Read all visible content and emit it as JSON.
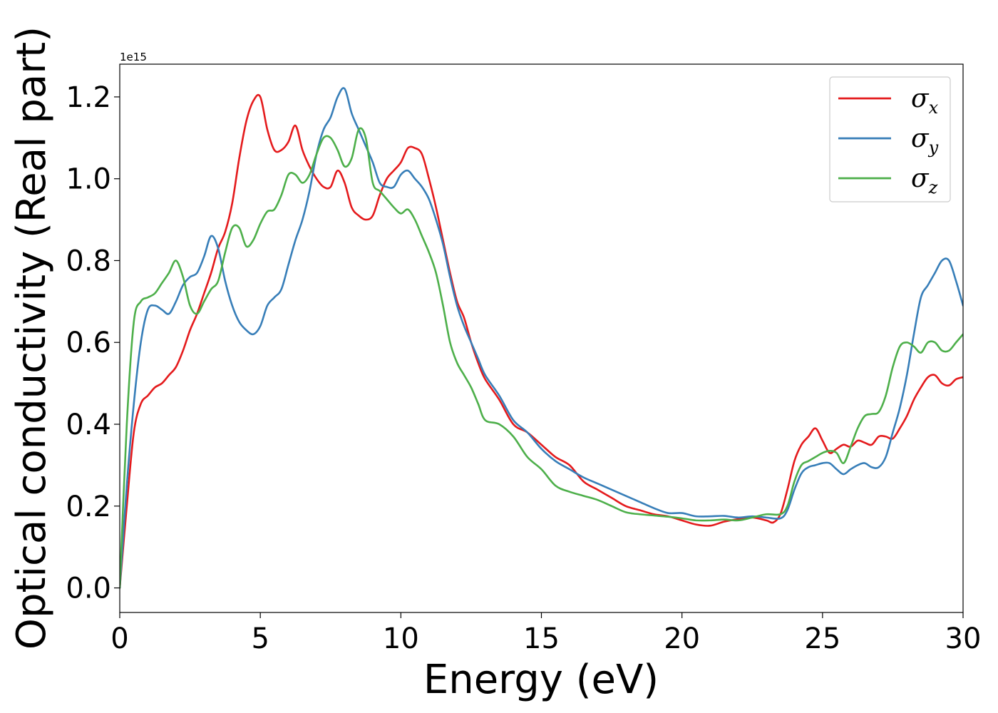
{
  "chart_data": {
    "type": "line",
    "xlabel": "Energy (eV)",
    "ylabel": "Optical conductivity (Real part)",
    "y_offset_label": "1e15",
    "xlim": [
      0,
      30
    ],
    "ylim": [
      -0.06,
      1.28
    ],
    "xticks": [
      0,
      5,
      10,
      15,
      20,
      25,
      30
    ],
    "xtick_labels": [
      "0",
      "5",
      "10",
      "15",
      "20",
      "25",
      "30"
    ],
    "yticks": [
      0.0,
      0.2,
      0.4,
      0.6,
      0.8,
      1.0,
      1.2
    ],
    "ytick_labels": [
      "0.0",
      "0.2",
      "0.4",
      "0.6",
      "0.8",
      "1.0",
      "1.2"
    ],
    "grid": false,
    "legend_position": "top-right",
    "series": [
      {
        "name": "σx",
        "legend_symbol": "σ",
        "legend_sub": "x",
        "color": "#e41a1c",
        "points": [
          [
            0,
            0.0
          ],
          [
            0.25,
            0.2
          ],
          [
            0.5,
            0.38
          ],
          [
            0.75,
            0.45
          ],
          [
            1.0,
            0.47
          ],
          [
            1.25,
            0.49
          ],
          [
            1.5,
            0.5
          ],
          [
            1.75,
            0.52
          ],
          [
            2.0,
            0.54
          ],
          [
            2.25,
            0.58
          ],
          [
            2.5,
            0.63
          ],
          [
            2.75,
            0.67
          ],
          [
            3.0,
            0.72
          ],
          [
            3.25,
            0.77
          ],
          [
            3.5,
            0.83
          ],
          [
            3.75,
            0.87
          ],
          [
            4.0,
            0.94
          ],
          [
            4.25,
            1.05
          ],
          [
            4.5,
            1.14
          ],
          [
            4.75,
            1.19
          ],
          [
            5.0,
            1.2
          ],
          [
            5.25,
            1.12
          ],
          [
            5.5,
            1.07
          ],
          [
            5.75,
            1.07
          ],
          [
            6.0,
            1.09
          ],
          [
            6.25,
            1.13
          ],
          [
            6.5,
            1.07
          ],
          [
            6.75,
            1.03
          ],
          [
            7.0,
            1.0
          ],
          [
            7.25,
            0.98
          ],
          [
            7.5,
            0.98
          ],
          [
            7.75,
            1.02
          ],
          [
            8.0,
            0.99
          ],
          [
            8.25,
            0.93
          ],
          [
            8.5,
            0.91
          ],
          [
            8.75,
            0.9
          ],
          [
            9.0,
            0.91
          ],
          [
            9.25,
            0.96
          ],
          [
            9.5,
            1.0
          ],
          [
            9.75,
            1.02
          ],
          [
            10.0,
            1.04
          ],
          [
            10.25,
            1.075
          ],
          [
            10.5,
            1.075
          ],
          [
            10.75,
            1.06
          ],
          [
            11.0,
            1.0
          ],
          [
            11.25,
            0.93
          ],
          [
            11.5,
            0.85
          ],
          [
            11.75,
            0.77
          ],
          [
            12.0,
            0.7
          ],
          [
            12.25,
            0.66
          ],
          [
            12.5,
            0.6
          ],
          [
            12.75,
            0.55
          ],
          [
            13.0,
            0.51
          ],
          [
            13.5,
            0.46
          ],
          [
            14.0,
            0.4
          ],
          [
            14.5,
            0.38
          ],
          [
            15.0,
            0.35
          ],
          [
            15.5,
            0.32
          ],
          [
            16.0,
            0.3
          ],
          [
            16.5,
            0.26
          ],
          [
            17.0,
            0.24
          ],
          [
            17.5,
            0.22
          ],
          [
            18.0,
            0.2
          ],
          [
            18.5,
            0.19
          ],
          [
            19.0,
            0.18
          ],
          [
            19.5,
            0.175
          ],
          [
            20.0,
            0.165
          ],
          [
            20.5,
            0.155
          ],
          [
            21.0,
            0.152
          ],
          [
            21.5,
            0.162
          ],
          [
            22.0,
            0.168
          ],
          [
            22.5,
            0.172
          ],
          [
            23.0,
            0.165
          ],
          [
            23.25,
            0.16
          ],
          [
            23.5,
            0.18
          ],
          [
            23.75,
            0.24
          ],
          [
            24.0,
            0.31
          ],
          [
            24.25,
            0.35
          ],
          [
            24.5,
            0.37
          ],
          [
            24.75,
            0.39
          ],
          [
            25.0,
            0.36
          ],
          [
            25.25,
            0.33
          ],
          [
            25.5,
            0.34
          ],
          [
            25.75,
            0.35
          ],
          [
            26.0,
            0.345
          ],
          [
            26.25,
            0.36
          ],
          [
            26.5,
            0.355
          ],
          [
            26.75,
            0.35
          ],
          [
            27.0,
            0.37
          ],
          [
            27.25,
            0.37
          ],
          [
            27.5,
            0.365
          ],
          [
            27.75,
            0.39
          ],
          [
            28.0,
            0.42
          ],
          [
            28.25,
            0.46
          ],
          [
            28.5,
            0.49
          ],
          [
            28.75,
            0.515
          ],
          [
            29.0,
            0.52
          ],
          [
            29.25,
            0.5
          ],
          [
            29.5,
            0.495
          ],
          [
            29.75,
            0.51
          ],
          [
            30.0,
            0.515
          ]
        ]
      },
      {
        "name": "σy",
        "legend_symbol": "σ",
        "legend_sub": "y",
        "color": "#377eb8",
        "points": [
          [
            0,
            0.0
          ],
          [
            0.25,
            0.25
          ],
          [
            0.5,
            0.45
          ],
          [
            0.75,
            0.6
          ],
          [
            1.0,
            0.68
          ],
          [
            1.25,
            0.69
          ],
          [
            1.5,
            0.68
          ],
          [
            1.75,
            0.67
          ],
          [
            2.0,
            0.7
          ],
          [
            2.25,
            0.74
          ],
          [
            2.5,
            0.76
          ],
          [
            2.75,
            0.77
          ],
          [
            3.0,
            0.81
          ],
          [
            3.25,
            0.86
          ],
          [
            3.5,
            0.83
          ],
          [
            3.75,
            0.75
          ],
          [
            4.0,
            0.69
          ],
          [
            4.25,
            0.65
          ],
          [
            4.5,
            0.63
          ],
          [
            4.75,
            0.62
          ],
          [
            5.0,
            0.64
          ],
          [
            5.25,
            0.69
          ],
          [
            5.5,
            0.71
          ],
          [
            5.75,
            0.73
          ],
          [
            6.0,
            0.79
          ],
          [
            6.25,
            0.85
          ],
          [
            6.5,
            0.9
          ],
          [
            6.75,
            0.97
          ],
          [
            7.0,
            1.06
          ],
          [
            7.25,
            1.12
          ],
          [
            7.5,
            1.15
          ],
          [
            7.75,
            1.2
          ],
          [
            8.0,
            1.22
          ],
          [
            8.25,
            1.16
          ],
          [
            8.5,
            1.12
          ],
          [
            8.75,
            1.08
          ],
          [
            9.0,
            1.04
          ],
          [
            9.25,
            0.99
          ],
          [
            9.5,
            0.98
          ],
          [
            9.75,
            0.98
          ],
          [
            10.0,
            1.01
          ],
          [
            10.25,
            1.02
          ],
          [
            10.5,
            1.0
          ],
          [
            10.75,
            0.98
          ],
          [
            11.0,
            0.95
          ],
          [
            11.25,
            0.9
          ],
          [
            11.5,
            0.84
          ],
          [
            11.75,
            0.76
          ],
          [
            12.0,
            0.69
          ],
          [
            12.25,
            0.64
          ],
          [
            12.5,
            0.6
          ],
          [
            12.75,
            0.56
          ],
          [
            13.0,
            0.52
          ],
          [
            13.5,
            0.47
          ],
          [
            14.0,
            0.41
          ],
          [
            14.5,
            0.38
          ],
          [
            15.0,
            0.34
          ],
          [
            15.5,
            0.31
          ],
          [
            16.0,
            0.29
          ],
          [
            16.5,
            0.27
          ],
          [
            17.0,
            0.255
          ],
          [
            17.5,
            0.24
          ],
          [
            18.0,
            0.225
          ],
          [
            18.5,
            0.21
          ],
          [
            19.0,
            0.195
          ],
          [
            19.5,
            0.183
          ],
          [
            20.0,
            0.183
          ],
          [
            20.5,
            0.175
          ],
          [
            21.0,
            0.175
          ],
          [
            21.5,
            0.176
          ],
          [
            22.0,
            0.172
          ],
          [
            22.5,
            0.175
          ],
          [
            23.0,
            0.172
          ],
          [
            23.5,
            0.17
          ],
          [
            23.75,
            0.19
          ],
          [
            24.0,
            0.24
          ],
          [
            24.25,
            0.28
          ],
          [
            24.5,
            0.295
          ],
          [
            24.75,
            0.3
          ],
          [
            25.0,
            0.305
          ],
          [
            25.25,
            0.305
          ],
          [
            25.5,
            0.29
          ],
          [
            25.75,
            0.278
          ],
          [
            26.0,
            0.29
          ],
          [
            26.25,
            0.3
          ],
          [
            26.5,
            0.305
          ],
          [
            26.75,
            0.295
          ],
          [
            27.0,
            0.295
          ],
          [
            27.25,
            0.32
          ],
          [
            27.5,
            0.38
          ],
          [
            27.75,
            0.44
          ],
          [
            28.0,
            0.52
          ],
          [
            28.25,
            0.62
          ],
          [
            28.5,
            0.71
          ],
          [
            28.75,
            0.74
          ],
          [
            29.0,
            0.77
          ],
          [
            29.25,
            0.8
          ],
          [
            29.5,
            0.8
          ],
          [
            29.75,
            0.75
          ],
          [
            30.0,
            0.69
          ]
        ]
      },
      {
        "name": "σz",
        "legend_symbol": "σ",
        "legend_sub": "z",
        "color": "#4daf4a",
        "points": [
          [
            0,
            0.0
          ],
          [
            0.25,
            0.4
          ],
          [
            0.5,
            0.65
          ],
          [
            0.75,
            0.7
          ],
          [
            1.0,
            0.71
          ],
          [
            1.25,
            0.72
          ],
          [
            1.5,
            0.745
          ],
          [
            1.75,
            0.77
          ],
          [
            2.0,
            0.8
          ],
          [
            2.25,
            0.76
          ],
          [
            2.5,
            0.69
          ],
          [
            2.75,
            0.67
          ],
          [
            3.0,
            0.7
          ],
          [
            3.25,
            0.73
          ],
          [
            3.5,
            0.75
          ],
          [
            3.75,
            0.82
          ],
          [
            4.0,
            0.88
          ],
          [
            4.25,
            0.88
          ],
          [
            4.5,
            0.835
          ],
          [
            4.75,
            0.85
          ],
          [
            5.0,
            0.89
          ],
          [
            5.25,
            0.92
          ],
          [
            5.5,
            0.925
          ],
          [
            5.75,
            0.96
          ],
          [
            6.0,
            1.01
          ],
          [
            6.25,
            1.01
          ],
          [
            6.5,
            0.99
          ],
          [
            6.75,
            1.01
          ],
          [
            7.0,
            1.06
          ],
          [
            7.25,
            1.1
          ],
          [
            7.5,
            1.1
          ],
          [
            7.75,
            1.07
          ],
          [
            8.0,
            1.03
          ],
          [
            8.25,
            1.05
          ],
          [
            8.5,
            1.12
          ],
          [
            8.75,
            1.1
          ],
          [
            9.0,
            0.99
          ],
          [
            9.25,
            0.97
          ],
          [
            9.5,
            0.95
          ],
          [
            9.75,
            0.93
          ],
          [
            10.0,
            0.915
          ],
          [
            10.25,
            0.925
          ],
          [
            10.5,
            0.9
          ],
          [
            10.75,
            0.86
          ],
          [
            11.0,
            0.82
          ],
          [
            11.25,
            0.77
          ],
          [
            11.5,
            0.69
          ],
          [
            11.75,
            0.6
          ],
          [
            12.0,
            0.55
          ],
          [
            12.25,
            0.52
          ],
          [
            12.5,
            0.49
          ],
          [
            12.75,
            0.45
          ],
          [
            13.0,
            0.41
          ],
          [
            13.5,
            0.4
          ],
          [
            14.0,
            0.37
          ],
          [
            14.5,
            0.32
          ],
          [
            15.0,
            0.29
          ],
          [
            15.5,
            0.25
          ],
          [
            16.0,
            0.235
          ],
          [
            16.5,
            0.225
          ],
          [
            17.0,
            0.215
          ],
          [
            17.5,
            0.2
          ],
          [
            18.0,
            0.185
          ],
          [
            18.5,
            0.18
          ],
          [
            19.0,
            0.177
          ],
          [
            19.5,
            0.174
          ],
          [
            20.0,
            0.17
          ],
          [
            20.5,
            0.165
          ],
          [
            21.0,
            0.165
          ],
          [
            21.5,
            0.167
          ],
          [
            22.0,
            0.165
          ],
          [
            22.5,
            0.172
          ],
          [
            23.0,
            0.18
          ],
          [
            23.5,
            0.18
          ],
          [
            23.75,
            0.2
          ],
          [
            24.0,
            0.26
          ],
          [
            24.25,
            0.3
          ],
          [
            24.5,
            0.31
          ],
          [
            24.75,
            0.32
          ],
          [
            25.0,
            0.33
          ],
          [
            25.25,
            0.335
          ],
          [
            25.5,
            0.33
          ],
          [
            25.75,
            0.305
          ],
          [
            26.0,
            0.345
          ],
          [
            26.25,
            0.39
          ],
          [
            26.5,
            0.42
          ],
          [
            26.75,
            0.425
          ],
          [
            27.0,
            0.43
          ],
          [
            27.25,
            0.47
          ],
          [
            27.5,
            0.54
          ],
          [
            27.75,
            0.59
          ],
          [
            28.0,
            0.6
          ],
          [
            28.25,
            0.59
          ],
          [
            28.5,
            0.575
          ],
          [
            28.75,
            0.6
          ],
          [
            29.0,
            0.6
          ],
          [
            29.25,
            0.58
          ],
          [
            29.5,
            0.58
          ],
          [
            29.75,
            0.6
          ],
          [
            30.0,
            0.62
          ]
        ]
      }
    ]
  }
}
